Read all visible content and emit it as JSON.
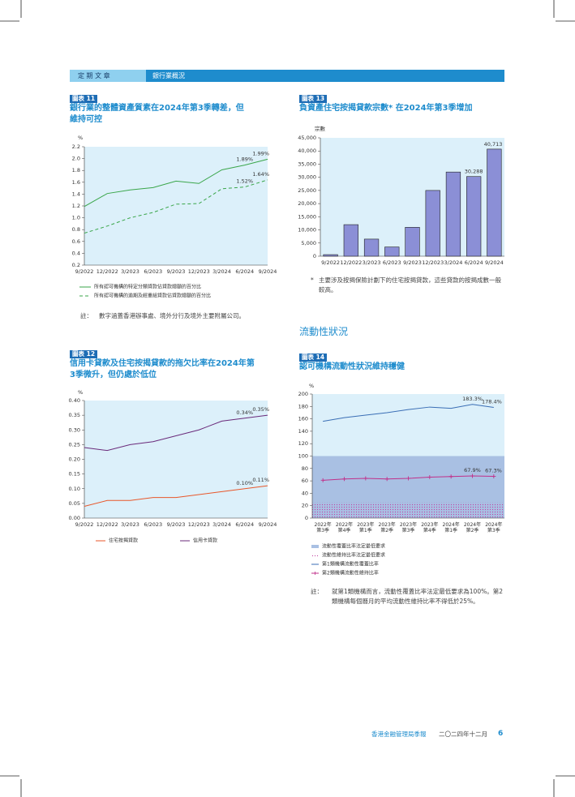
{
  "header": {
    "section": "定 期 文 章",
    "topic": "銀行業概況"
  },
  "chart_data": [
    {
      "type": "line",
      "label": "圖表 11",
      "title": "銀行業的整體資產質素在2024年第3季轉差，但維持可控",
      "y_label": "%",
      "categories": [
        "9/2022",
        "12/2022",
        "3/2023",
        "6/2023",
        "9/2023",
        "12/2023",
        "3/2024",
        "6/2024",
        "9/2024"
      ],
      "ylim": [
        0.2,
        2.2
      ],
      "yticks": [
        0.2,
        0.4,
        0.6,
        0.8,
        {
          "value": 1,
          "label": "1.0"
        },
        1.2,
        1.4,
        1.6,
        1.8,
        {
          "value": 2,
          "label": "2.0"
        },
        2.2
      ],
      "grid": false,
      "background": "#dcf0fa",
      "series": [
        {
          "name": "所有認可機構的特定分類貸款佔貸款總額的百分比",
          "color": "#3aa64a",
          "line_style": "solid",
          "values": [
            1.19,
            1.41,
            1.47,
            1.51,
            1.62,
            1.58,
            1.81,
            1.89,
            1.99
          ],
          "value_labels": [
            null,
            null,
            null,
            null,
            null,
            null,
            null,
            "1.89%",
            "1.99%"
          ]
        },
        {
          "name": "所有認可機構的逾期及經重組貸款佔貸款總額的百分比",
          "color": "#3aa64a",
          "line_style": "dashed",
          "values": [
            0.74,
            0.86,
            1.0,
            1.09,
            1.23,
            1.24,
            1.49,
            1.52,
            1.64
          ],
          "value_labels": [
            null,
            null,
            null,
            null,
            null,
            null,
            null,
            "1.52%",
            "1.64%"
          ]
        }
      ],
      "note": {
        "label": "註：",
        "text": "數字涵蓋香港辦事處、境外分行及境外主要附屬公司。"
      }
    },
    {
      "type": "line",
      "label": "圖表 12",
      "title": "信用卡貸款及住宅按揭貸款的拖欠比率在2024年第3季微升，但仍處於低位",
      "y_label": "%",
      "categories": [
        "9/2022",
        "12/2022",
        "3/2023",
        "6/2023",
        "9/2023",
        "12/2023",
        "3/2024",
        "6/2024",
        "9/2024"
      ],
      "ylim": [
        0,
        0.4
      ],
      "yticks": [
        {
          "value": 0,
          "label": "0.00"
        },
        0.05,
        {
          "value": 0.1,
          "label": "0.10"
        },
        0.15,
        {
          "value": 0.2,
          "label": "0.20"
        },
        0.25,
        {
          "value": 0.3,
          "label": "0.30"
        },
        0.35,
        {
          "value": 0.4,
          "label": "0.40"
        }
      ],
      "grid": false,
      "background": "#dcf0fa",
      "series": [
        {
          "name": "住宅按揭貸款",
          "color": "#e8572a",
          "line_style": "solid",
          "values": [
            0.04,
            0.06,
            0.06,
            0.07,
            0.07,
            0.08,
            0.09,
            0.1,
            0.11
          ],
          "value_labels": [
            null,
            null,
            null,
            null,
            null,
            null,
            null,
            "0.10%",
            "0.11%"
          ]
        },
        {
          "name": "信用卡貸款",
          "color": "#6a2a7a",
          "line_style": "solid",
          "values": [
            0.24,
            0.23,
            0.25,
            0.26,
            0.28,
            0.3,
            0.33,
            0.34,
            0.35
          ],
          "value_labels": [
            null,
            null,
            null,
            null,
            null,
            null,
            null,
            "0.34%",
            "0.35%"
          ]
        }
      ]
    },
    {
      "type": "bar",
      "label": "圖表 13",
      "title": "負資產住宅按揭貸款宗數* 在2024年第3季增加",
      "y_label": "宗數",
      "categories": [
        "9/2022",
        "12/2022",
        "3/2023",
        "6/2023",
        "9/2023",
        "12/2023",
        "3/2024",
        "6/2024",
        "9/2024"
      ],
      "values": [
        600,
        12000,
        6500,
        3500,
        11000,
        25000,
        32000,
        30288,
        40713
      ],
      "value_labels": [
        null,
        null,
        null,
        null,
        null,
        null,
        null,
        "30,288",
        "40,713"
      ],
      "color": "#8b8fd6",
      "ylim": [
        0,
        45000
      ],
      "yticks": [
        0,
        {
          "value": 5000,
          "label": "5,000"
        },
        {
          "value": 10000,
          "label": "10,000"
        },
        {
          "value": 15000,
          "label": "15,000"
        },
        {
          "value": 20000,
          "label": "20,000"
        },
        {
          "value": 25000,
          "label": "25,000"
        },
        {
          "value": 30000,
          "label": "30,000"
        },
        {
          "value": 35000,
          "label": "35,000"
        },
        {
          "value": 40000,
          "label": "40,000"
        },
        {
          "value": 45000,
          "label": "45,000"
        }
      ],
      "grid": false,
      "background": "#dcf0fa",
      "footnote": {
        "marker": "*",
        "text": "主要涉及按揭保險計劃下的住宅按揭貸款，這些貸款的按揭成數一般較高。"
      }
    },
    {
      "type": "line",
      "label": "圖表 14",
      "title": "認可機構流動性狀況維持穩健",
      "y_label": "%",
      "categories": [
        "2022年\n第3季",
        "2022年\n第4季",
        "2023年\n第1季",
        "2023年\n第2季",
        "2023年\n第3季",
        "2023年\n第4季",
        "2024年\n第1季",
        "2024年\n第2季",
        "2024年\n第3季"
      ],
      "ylim": [
        0,
        200
      ],
      "yticks": [
        0,
        20,
        40,
        60,
        80,
        100,
        120,
        140,
        160,
        180,
        200
      ],
      "grid": false,
      "background": "#dcf0fa",
      "thresholds": [
        {
          "name": "流動性覆蓋比率法定最低要求",
          "value": 100,
          "color": "#a9c0e3",
          "pattern": "solid"
        },
        {
          "name": "流動性維持比率法定最低要求",
          "value": 25,
          "color": "#c040a0",
          "pattern": "dots"
        }
      ],
      "series": [
        {
          "name": "第1類機構流動性覆蓋比率",
          "color": "#3a6eb5",
          "line_style": "solid",
          "values": [
            156,
            162,
            166,
            170,
            175,
            179,
            177,
            183.3,
            178.4
          ],
          "value_labels": [
            null,
            null,
            null,
            null,
            null,
            null,
            null,
            "183.3%",
            "178.4%"
          ]
        },
        {
          "name": "第2類機構流動性維持比率",
          "color": "#c0308a",
          "line_style": "solid",
          "marker": "plus",
          "values": [
            61,
            63,
            64,
            63,
            64,
            66,
            67,
            67.9,
            67.3
          ],
          "value_labels": [
            null,
            null,
            null,
            null,
            null,
            null,
            null,
            "67.9%",
            "67.3%"
          ]
        }
      ],
      "note": {
        "label": "註：",
        "text": "就第1類機構而言，流動性覆蓋比率法定最低要求為100%。第2類機構每個曆月的平均流動性維持比率不得低於25%。"
      }
    }
  ],
  "section_heading": "流動性狀況",
  "footer": {
    "publication": "香港金融管理局季報",
    "date": "二〇二四年十二月",
    "page": 6
  }
}
